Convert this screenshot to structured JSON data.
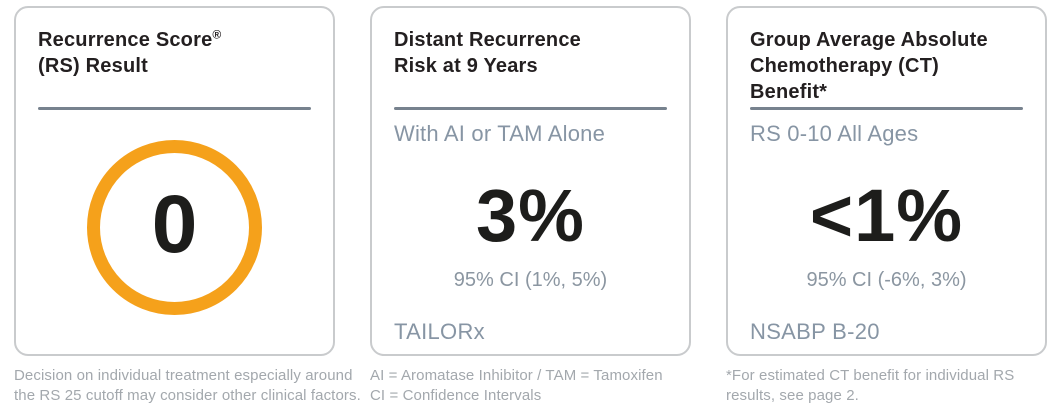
{
  "cards": [
    {
      "title_line1": "Recurrence Score",
      "title_reg": "®",
      "title_line2": "(RS) Result",
      "score": "0",
      "footnote_line1": "Decision on individual treatment especially around",
      "footnote_line2": "the RS 25 cutoff may consider other clinical factors."
    },
    {
      "title_line1": "Distant Recurrence",
      "title_line2": "Risk at 9 Years",
      "subtitle": "With AI or TAM Alone",
      "value": "3%",
      "ci": "95% CI (1%, 5%)",
      "study": "TAILORx",
      "footnote_line1": "AI = Aromatase Inhibitor / TAM = Tamoxifen",
      "footnote_line2": "CI = Confidence Intervals"
    },
    {
      "title_line1": "Group Average Absolute",
      "title_line2": "Chemotherapy (CT)",
      "title_line3": "Benefit*",
      "subtitle": "RS 0-10 All Ages",
      "value": "<1%",
      "ci": "95% CI (-6%, 3%)",
      "study": "NSABP B-20",
      "footnote_line1": "*For estimated CT benefit for individual RS",
      "footnote_line2": "results, see page 2."
    }
  ],
  "colors": {
    "accent_orange": "#F5A11B",
    "divider_gray_blue": "#77828E",
    "subtitle_gray_blue": "#8795A4",
    "ci_gray": "#8B96A1",
    "title_black": "#231F20",
    "footnote_gray": "#A3A8AD",
    "card_border_gray": "#C9CBCD"
  }
}
